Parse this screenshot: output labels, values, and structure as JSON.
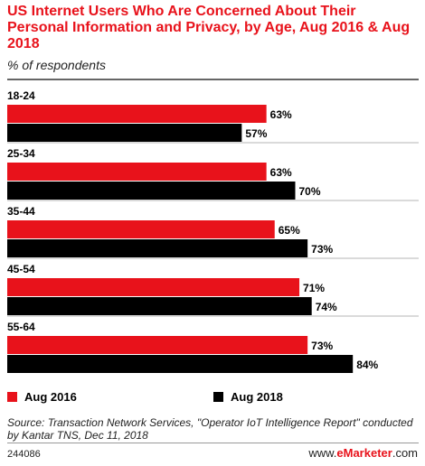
{
  "chart_data": {
    "type": "bar",
    "orientation": "horizontal",
    "title": "US Internet Users Who Are Concerned About Their Personal Information and Privacy, by Age, Aug 2016 & Aug 2018",
    "subtitle": "% of respondents",
    "categories": [
      "18-24",
      "25-34",
      "35-44",
      "45-54",
      "55-64"
    ],
    "series": [
      {
        "name": "Aug 2016",
        "color": "#e8121b",
        "values": [
          63,
          63,
          65,
          71,
          73
        ]
      },
      {
        "name": "Aug 2018",
        "color": "#000000",
        "values": [
          57,
          70,
          73,
          74,
          84
        ]
      }
    ],
    "value_suffix": "%",
    "xlim": [
      0,
      100
    ],
    "grid": false,
    "legend_position": "bottom"
  },
  "source": "Source: Transaction Network Services, \"Operator IoT Intelligence Report\" conducted by Kantar TNS, Dec 11, 2018",
  "footer": {
    "chart_id": "244086",
    "brand_prefix": "www.",
    "brand_name": "eMarketer",
    "brand_suffix": ".com"
  }
}
